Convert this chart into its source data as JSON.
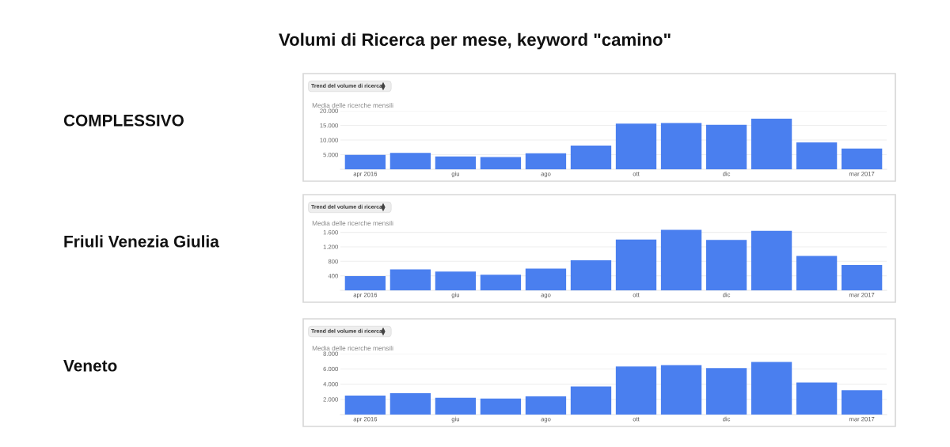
{
  "chart_data": [
    {
      "type": "bar",
      "title": "Volumi di Ricerca per mese, keyword \"camino\"",
      "ylabel": "COMPLESSIVO",
      "annotations": [
        "Trend del volume di ricerca",
        "Media delle ricerche mensili"
      ],
      "categories": [
        "apr 2016",
        null,
        "giu",
        null,
        "ago",
        null,
        "ott",
        null,
        "dic",
        null,
        null,
        "mar 2017"
      ],
      "values": [
        4900,
        5600,
        4400,
        4200,
        5500,
        8100,
        15600,
        15800,
        15200,
        17300,
        9200,
        7100
      ],
      "color": "#4a7fef",
      "ylim": [
        0,
        20000
      ],
      "yticks": [
        {
          "value": 5000,
          "label": "5.000"
        },
        {
          "value": 10000,
          "label": "10.000"
        },
        {
          "value": 15000,
          "label": "15.000"
        },
        {
          "value": 20000,
          "label": "20.000"
        }
      ],
      "grid": "y"
    },
    {
      "type": "bar",
      "ylabel": "Friuli Venezia Giulia",
      "annotations": [
        "Trend del volume di ricerca",
        "Media delle ricerche mensili"
      ],
      "categories": [
        "apr 2016",
        null,
        "giu",
        null,
        "ago",
        null,
        "ott",
        null,
        "dic",
        null,
        null,
        "mar 2017"
      ],
      "values": [
        390,
        580,
        520,
        430,
        600,
        830,
        1400,
        1670,
        1390,
        1640,
        950,
        700
      ],
      "color": "#4a7fef",
      "ylim": [
        0,
        1700
      ],
      "yticks": [
        {
          "value": 400,
          "label": "400"
        },
        {
          "value": 800,
          "label": "800"
        },
        {
          "value": 1200,
          "label": "1.200"
        },
        {
          "value": 1600,
          "label": "1.600"
        }
      ],
      "grid": "y"
    },
    {
      "type": "bar",
      "ylabel": "Veneto",
      "annotations": [
        "Trend del volume di ricerca",
        "Media delle ricerche mensili"
      ],
      "categories": [
        "apr 2016",
        null,
        "giu",
        null,
        "ago",
        null,
        "ott",
        null,
        "dic",
        null,
        null,
        "mar 2017"
      ],
      "values": [
        2500,
        2800,
        2200,
        2100,
        2400,
        3700,
        6300,
        6500,
        6100,
        6900,
        4200,
        3200
      ],
      "color": "#4a7fef",
      "ylim": [
        0,
        8000
      ],
      "yticks": [
        {
          "value": 2000,
          "label": "2.000"
        },
        {
          "value": 4000,
          "label": "4.000"
        },
        {
          "value": 6000,
          "label": "6.000"
        },
        {
          "value": 8000,
          "label": "8.000"
        }
      ],
      "grid": "y"
    }
  ]
}
